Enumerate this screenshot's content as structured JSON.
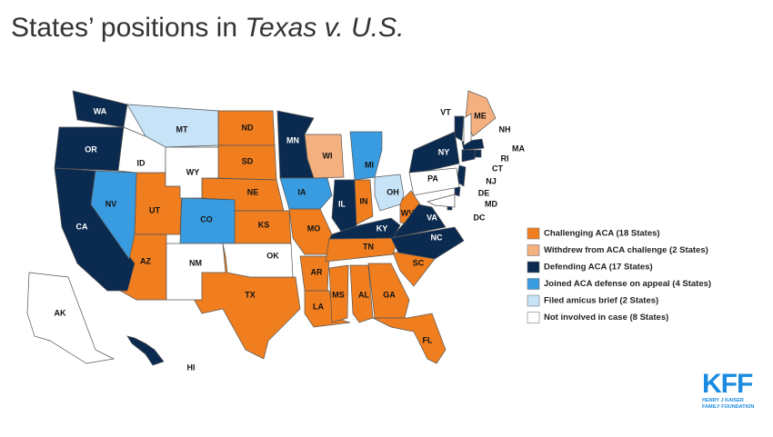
{
  "header": {
    "title": "States’ positions in",
    "title_italic": "Texas v. U.S."
  },
  "legend": [
    {
      "label": "Challenging ACA  (18 States)",
      "color": "#f07e1f",
      "states": [
        "ND",
        "SD",
        "NE",
        "KS",
        "UT",
        "AZ",
        "TX",
        "MO",
        "AR",
        "LA",
        "MS",
        "AL",
        "GA",
        "SC",
        "TN",
        "FL",
        "IN",
        "WV"
      ]
    },
    {
      "label": "Withdrew from ACA  challenge (2 States)",
      "color": "#f5b07f",
      "states": [
        "ME",
        "WI"
      ]
    },
    {
      "label": "Defending ACA (17 States)",
      "color": "#0b2a4f",
      "states": [
        "WA",
        "OR",
        "CA",
        "MN",
        "IL",
        "NY",
        "VA",
        "NC",
        "KY",
        "VT",
        "MA",
        "RI",
        "CT",
        "NJ",
        "DE",
        "DC",
        "HI"
      ]
    },
    {
      "label": "Joined ACA  defense on appeal (4 States)",
      "color": "#3a9ce0",
      "states": [
        "NV",
        "CO",
        "IA",
        "MI"
      ]
    },
    {
      "label": "Filed amicus  brief (2 States)",
      "color": "#c6e3f7",
      "states": [
        "MT",
        "OH"
      ]
    },
    {
      "label": "Not involved in case (8 States)",
      "color": "#ffffff",
      "states": [
        "ID",
        "WY",
        "NM",
        "OK",
        "PA",
        "AK",
        "NH",
        "MD"
      ]
    }
  ],
  "logo": {
    "name": "KFF",
    "line1": "HENRY J KAISER",
    "line2": "FAMILY FOUNDATION"
  }
}
